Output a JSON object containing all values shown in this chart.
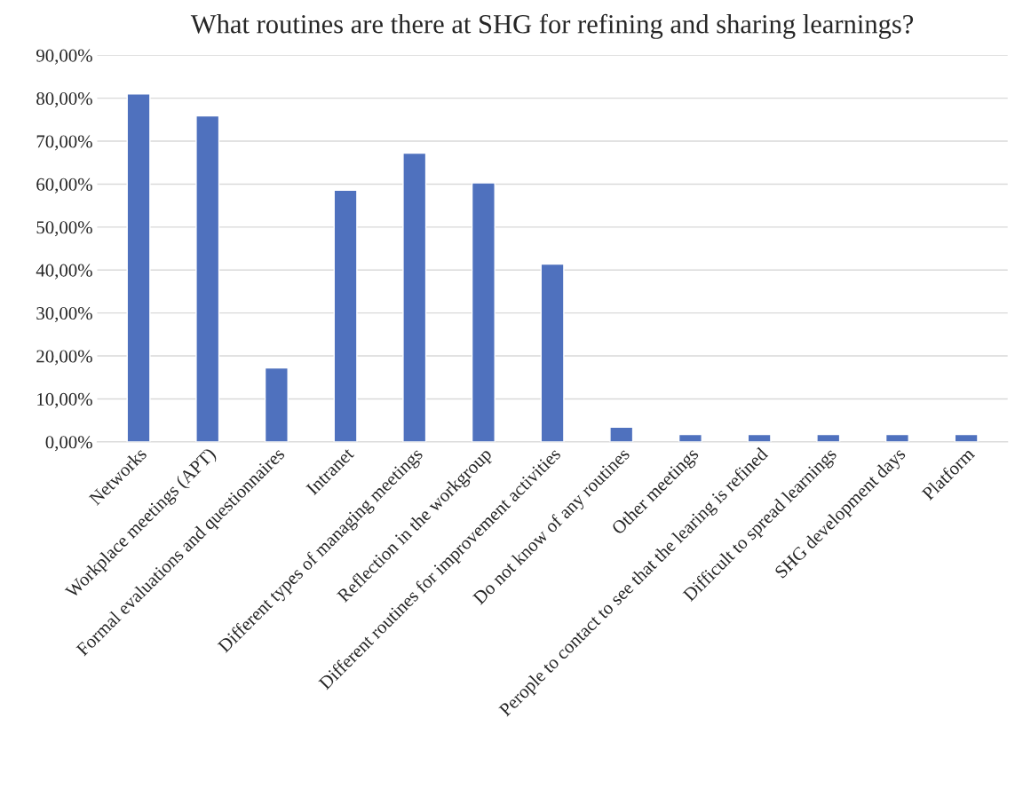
{
  "chart_data": {
    "type": "bar",
    "title": "What routines are there at SHG for refining and sharing learnings?",
    "categories": [
      "Networks",
      "Workplace meetings (APT)",
      "Formal evaluations and questionnaires",
      "Intranet",
      "Different types of managing meetings",
      "Reflection in the workgroup",
      "Different routines for improvement activities",
      "Do not know of any routines",
      "Other meetings",
      "Perople to contact to see that the learing is refined",
      "Difficult to spread learnings",
      "SHG development days",
      "Platform"
    ],
    "values": [
      81.0,
      75.9,
      17.2,
      58.6,
      67.2,
      60.3,
      41.4,
      3.4,
      1.7,
      1.7,
      1.7,
      1.7,
      1.7
    ],
    "color": "#4f71be",
    "ylim": [
      0,
      90
    ],
    "yticks": [
      {
        "value": 0,
        "label": "0,00%"
      },
      {
        "value": 10,
        "label": "10,00%"
      },
      {
        "value": 20,
        "label": "20,00%"
      },
      {
        "value": 30,
        "label": "30,00%"
      },
      {
        "value": 40,
        "label": "40,00%"
      },
      {
        "value": 50,
        "label": "50,00%"
      },
      {
        "value": 60,
        "label": "60,00%"
      },
      {
        "value": 70,
        "label": "70,00%"
      },
      {
        "value": 80,
        "label": "80,00%"
      },
      {
        "value": 90,
        "label": "90,00%"
      }
    ],
    "grid": "y"
  }
}
